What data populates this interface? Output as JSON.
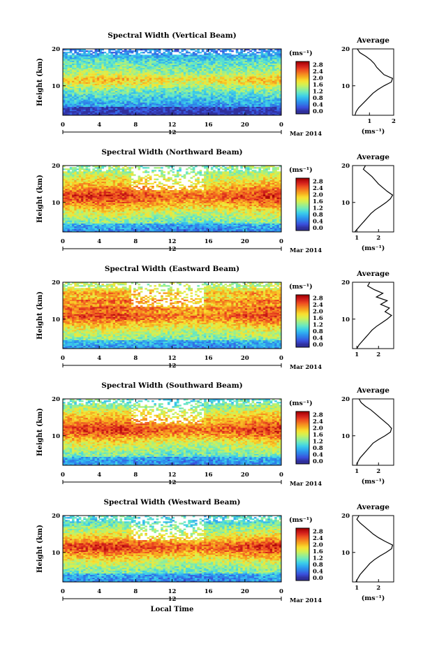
{
  "figure": {
    "xlabel": "Local Time",
    "colorbar_unit": "(ms⁻¹)",
    "colorbar_ticks": [
      "2.8",
      "2.4",
      "2.0",
      "1.6",
      "1.2",
      "0.8",
      "0.4",
      "0.0"
    ],
    "colormap": [
      "#30309c",
      "#3a50dd",
      "#2f7ee8",
      "#2fa7f0",
      "#3dd0e8",
      "#6ae8c0",
      "#9fef8a",
      "#d6f050",
      "#f8e030",
      "#f7b020",
      "#f47c20",
      "#ec4620",
      "#cc1a1a",
      "#a00000"
    ],
    "date_label": "Mar 2014",
    "date_tick": "12",
    "x_ticks": [
      "0",
      "4",
      "8",
      "12",
      "16",
      "20",
      "0"
    ],
    "y_ticks": [
      "20",
      "10"
    ],
    "avg_title": "Average",
    "avg_unit": "(ms⁻¹)"
  },
  "chart_data": [
    {
      "type": "heatmap",
      "title": "Spectral Width (Vertical Beam)",
      "ylabel": "Height (km)",
      "xlabel": "",
      "xlim": [
        0,
        24
      ],
      "ylim": [
        2,
        20
      ],
      "clim": [
        0,
        3.0
      ],
      "x_ticks": [
        "0",
        "4",
        "8",
        "12",
        "16",
        "20",
        "0"
      ],
      "profile": {
        "title": "Average",
        "xlabel": "(ms⁻¹)",
        "x_ticks": [
          "1",
          "2"
        ],
        "xlim": [
          0.3,
          2.0
        ],
        "heights": [
          2,
          3,
          4,
          5,
          6,
          7,
          8,
          9,
          10,
          11,
          12,
          13,
          14,
          15,
          16,
          17,
          18,
          19,
          20
        ],
        "values": [
          0.4,
          0.45,
          0.55,
          0.7,
          0.85,
          1.0,
          1.15,
          1.35,
          1.6,
          1.9,
          1.95,
          1.6,
          1.45,
          1.3,
          1.2,
          1.05,
          0.85,
          0.6,
          0.5
        ]
      }
    },
    {
      "type": "heatmap",
      "title": "Spectral Width (Northward Beam)",
      "ylabel": "Height (km)",
      "xlabel": "",
      "xlim": [
        0,
        24
      ],
      "ylim": [
        2,
        20
      ],
      "clim": [
        0,
        3.0
      ],
      "x_ticks": [
        "0",
        "4",
        "8",
        "12",
        "16",
        "20",
        "0"
      ],
      "profile": {
        "title": "Average",
        "xlabel": "(ms⁻¹)",
        "x_ticks": [
          "1",
          "2"
        ],
        "xlim": [
          0.8,
          2.7
        ],
        "heights": [
          2,
          3,
          4,
          5,
          6,
          7,
          8,
          9,
          10,
          11,
          12,
          13,
          14,
          15,
          16,
          17,
          18,
          19,
          20
        ],
        "values": [
          0.9,
          1.05,
          1.2,
          1.35,
          1.5,
          1.65,
          1.85,
          2.1,
          2.35,
          2.55,
          2.65,
          2.4,
          2.2,
          2.0,
          1.85,
          1.7,
          1.5,
          1.3,
          1.4
        ]
      }
    },
    {
      "type": "heatmap",
      "title": "Spectral Width (Eastward Beam)",
      "ylabel": "Height (km)",
      "xlabel": "",
      "xlim": [
        0,
        24
      ],
      "ylim": [
        2,
        20
      ],
      "clim": [
        0,
        3.0
      ],
      "x_ticks": [
        "0",
        "4",
        "8",
        "12",
        "16",
        "20",
        "0"
      ],
      "profile": {
        "title": "Average",
        "xlabel": "",
        "x_ticks": [
          "1",
          "2"
        ],
        "xlim": [
          0.8,
          2.7
        ],
        "heights": [
          2,
          3,
          4,
          5,
          6,
          7,
          8,
          9,
          10,
          11,
          12,
          13,
          14,
          15,
          16,
          17,
          18,
          19,
          20
        ],
        "values": [
          1.0,
          1.1,
          1.25,
          1.4,
          1.55,
          1.7,
          1.9,
          2.15,
          2.4,
          2.6,
          2.3,
          2.5,
          2.1,
          2.4,
          1.9,
          2.2,
          1.8,
          1.5,
          1.6
        ]
      }
    },
    {
      "type": "heatmap",
      "title": "Spectral Width (Southward Beam)",
      "ylabel": "Height (km)",
      "xlabel": "",
      "xlim": [
        0,
        24
      ],
      "ylim": [
        2,
        20
      ],
      "clim": [
        0,
        3.0
      ],
      "x_ticks": [
        "0",
        "4",
        "8",
        "12",
        "16",
        "20",
        "0"
      ],
      "profile": {
        "title": "Average",
        "xlabel": "(ms⁻¹)",
        "x_ticks": [
          "1",
          "2"
        ],
        "xlim": [
          0.8,
          2.7
        ],
        "heights": [
          2,
          3,
          4,
          5,
          6,
          7,
          8,
          9,
          10,
          11,
          12,
          13,
          14,
          15,
          16,
          17,
          18,
          19,
          20
        ],
        "values": [
          1.0,
          1.05,
          1.15,
          1.3,
          1.45,
          1.6,
          1.75,
          2.0,
          2.3,
          2.55,
          2.6,
          2.45,
          2.25,
          2.05,
          1.85,
          1.65,
          1.4,
          1.2,
          1.1
        ]
      }
    },
    {
      "type": "heatmap",
      "title": "Spectral Width (Westward Beam)",
      "ylabel": "Height (km)",
      "xlabel": "Local Time",
      "xlim": [
        0,
        24
      ],
      "ylim": [
        2,
        20
      ],
      "clim": [
        0,
        3.0
      ],
      "x_ticks": [
        "0",
        "4",
        "8",
        "12",
        "16",
        "20",
        "0"
      ],
      "profile": {
        "title": "Average",
        "xlabel": "(ms⁻¹)",
        "x_ticks": [
          "1",
          "2"
        ],
        "xlim": [
          0.8,
          2.7
        ],
        "heights": [
          2,
          3,
          4,
          5,
          6,
          7,
          8,
          9,
          10,
          11,
          12,
          13,
          14,
          15,
          16,
          17,
          18,
          19,
          20
        ],
        "values": [
          0.95,
          1.05,
          1.15,
          1.3,
          1.45,
          1.6,
          1.8,
          2.05,
          2.35,
          2.6,
          2.65,
          2.3,
          2.0,
          1.75,
          1.55,
          1.35,
          1.15,
          1.0,
          1.1
        ]
      }
    }
  ]
}
